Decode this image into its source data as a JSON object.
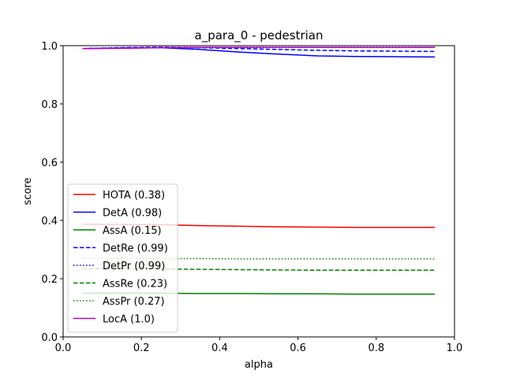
{
  "chart_data": {
    "type": "line",
    "title": "a_para_0 - pedestrian",
    "xlabel": "alpha",
    "ylabel": "score",
    "xlim": [
      0.0,
      1.0
    ],
    "ylim": [
      0.0,
      1.0
    ],
    "x_ticks": [
      "0.0",
      "0.2",
      "0.4",
      "0.6",
      "0.8",
      "1.0"
    ],
    "y_ticks": [
      "0.0",
      "0.2",
      "0.4",
      "0.6",
      "0.8",
      "1.0"
    ],
    "grid": false,
    "legend_position": "lower-left",
    "x": [
      0.05,
      0.15,
      0.25,
      0.35,
      0.45,
      0.55,
      0.65,
      0.75,
      0.85,
      0.95
    ],
    "series": [
      {
        "name": "HOTA (0.38)",
        "color": "#ff0000",
        "dash": "solid",
        "values": [
          0.387,
          0.386,
          0.385,
          0.382,
          0.38,
          0.378,
          0.377,
          0.376,
          0.376,
          0.376
        ]
      },
      {
        "name": "DetA (0.98)",
        "color": "#0000ff",
        "dash": "solid",
        "values": [
          0.99,
          0.992,
          0.993,
          0.987,
          0.978,
          0.971,
          0.965,
          0.963,
          0.962,
          0.961
        ]
      },
      {
        "name": "AssA (0.15)",
        "color": "#008000",
        "dash": "solid",
        "values": [
          0.15,
          0.15,
          0.15,
          0.149,
          0.149,
          0.148,
          0.148,
          0.147,
          0.147,
          0.147
        ]
      },
      {
        "name": "DetRe (0.99)",
        "color": "#0000ff",
        "dash": "dashed",
        "values": [
          0.99,
          0.993,
          0.995,
          0.993,
          0.99,
          0.987,
          0.984,
          0.982,
          0.981,
          0.98
        ]
      },
      {
        "name": "DetPr (0.99)",
        "color": "#0000ff",
        "dash": "dotted",
        "values": [
          0.99,
          0.993,
          0.995,
          0.995,
          0.995,
          0.995,
          0.995,
          0.995,
          0.995,
          0.995
        ]
      },
      {
        "name": "AssRe (0.23)",
        "color": "#008000",
        "dash": "dashed",
        "values": [
          0.234,
          0.234,
          0.233,
          0.232,
          0.231,
          0.23,
          0.229,
          0.229,
          0.229,
          0.229
        ]
      },
      {
        "name": "AssPr (0.27)",
        "color": "#008000",
        "dash": "dotted",
        "values": [
          0.27,
          0.27,
          0.269,
          0.269,
          0.268,
          0.268,
          0.268,
          0.268,
          0.268,
          0.268
        ]
      },
      {
        "name": "LocA (1.0)",
        "color": "#bf00bf",
        "dash": "solid",
        "values": [
          0.99,
          0.991,
          0.993,
          0.994,
          0.994,
          0.994,
          0.994,
          0.994,
          0.994,
          0.994
        ]
      }
    ]
  }
}
